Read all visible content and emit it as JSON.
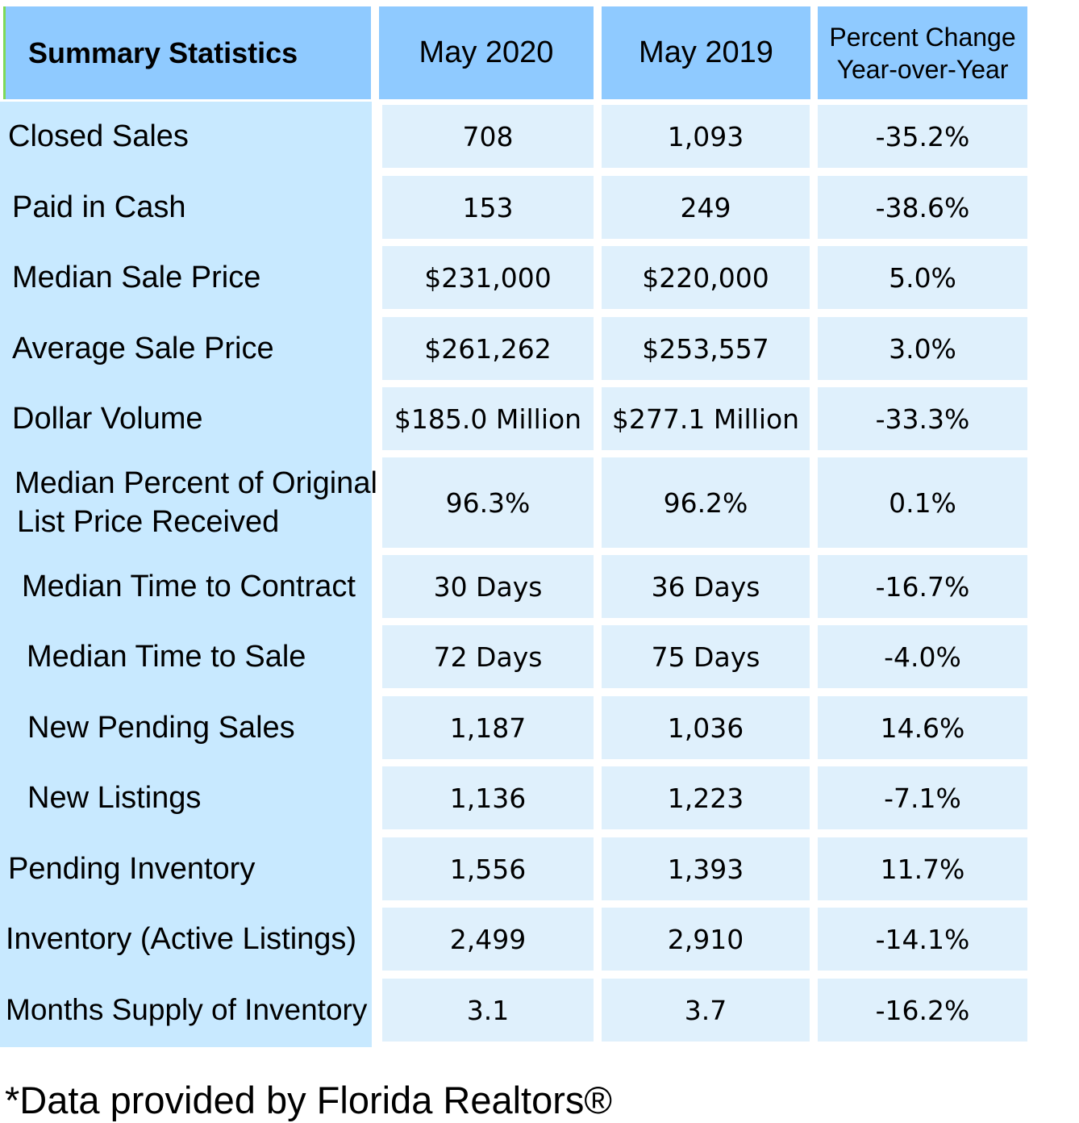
{
  "header": {
    "label": "Summary Statistics",
    "col1": "May 2020",
    "col2": "May 2019",
    "col3_line1": "Percent Change",
    "col3_line2": "Year-over-Year"
  },
  "rows": [
    {
      "label": "Closed Sales",
      "may2020": "708",
      "may2019": "1,093",
      "change": "-35.2%"
    },
    {
      "label": "Paid in Cash",
      "may2020": "153",
      "may2019": "249",
      "change": "-38.6%"
    },
    {
      "label": "Median Sale Price",
      "may2020": "$231,000",
      "may2019": "$220,000",
      "change": "5.0%"
    },
    {
      "label": "Average Sale Price",
      "may2020": "$261,262",
      "may2019": "$253,557",
      "change": "3.0%"
    },
    {
      "label": "Dollar Volume",
      "may2020": "$185.0 Million",
      "may2019": "$277.1 Million",
      "change": "-33.3%"
    },
    {
      "label_line1": "Median Percent of Original",
      "label_line2": "List Price Received",
      "may2020": "96.3%",
      "may2019": "96.2%",
      "change": "0.1%"
    },
    {
      "label": "Median Time to Contract",
      "may2020": "30 Days",
      "may2019": "36 Days",
      "change": "-16.7%"
    },
    {
      "label": "Median Time to Sale",
      "may2020": "72 Days",
      "may2019": "75 Days",
      "change": "-4.0%"
    },
    {
      "label": "New Pending Sales",
      "may2020": "1,187",
      "may2019": "1,036",
      "change": "14.6%"
    },
    {
      "label": "New Listings",
      "may2020": "1,136",
      "may2019": "1,223",
      "change": "-7.1%"
    },
    {
      "label": "Pending Inventory",
      "may2020": "1,556",
      "may2019": "1,393",
      "change": "11.7%"
    },
    {
      "label": "Inventory (Active Listings)",
      "may2020": "2,499",
      "may2019": "2,910",
      "change": "-14.1%"
    },
    {
      "label": "Months Supply of Inventory",
      "may2020": "3.1",
      "may2019": "3.7",
      "change": "-16.2%"
    }
  ],
  "footnote": "*Data provided by Florida Realtors®"
}
